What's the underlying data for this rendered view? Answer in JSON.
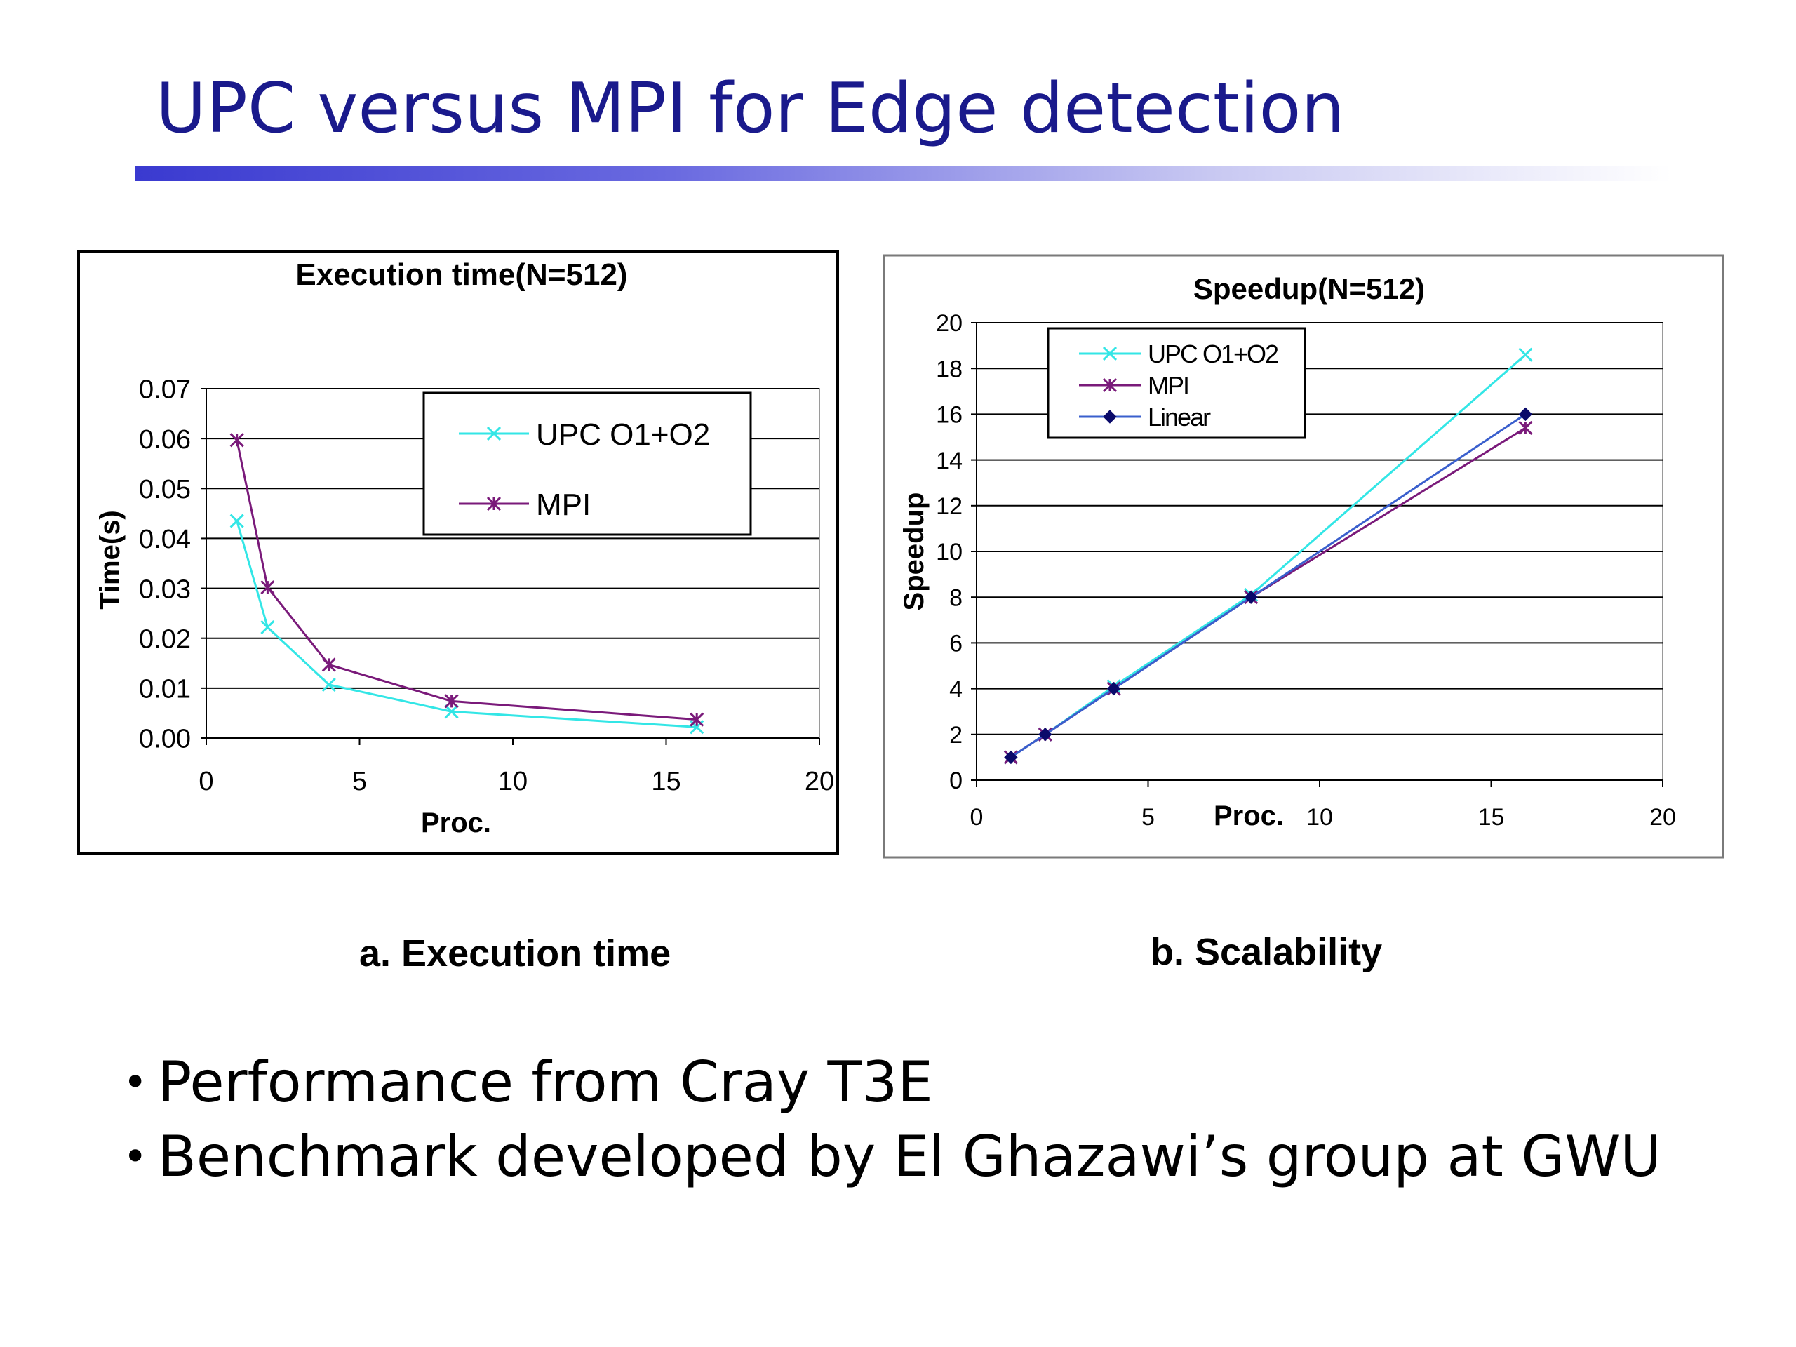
{
  "slide": {
    "title": "UPC versus MPI for Edge detection",
    "caption_a": "a. Execution time",
    "caption_b": "b. Scalability",
    "bullets": [
      "Performance from Cray T3E",
      "Benchmark developed by El Ghazawi’s group at GWU"
    ],
    "bullet_glyph": "•"
  },
  "colors": {
    "title": "#1a1a8c",
    "upc": "#33e6e6",
    "mpi": "#7a1a7a",
    "linear": "#3a5fcd",
    "linear_marker": "#0a0a6a"
  },
  "chart_data": [
    {
      "type": "line",
      "title": "Execution time(N=512)",
      "xlabel": "Proc.",
      "ylabel": "Time(s)",
      "xlim": [
        0,
        20
      ],
      "ylim": [
        0,
        0.07
      ],
      "x_ticks": [
        "0",
        "5",
        "10",
        "15",
        "20"
      ],
      "y_ticks": [
        "0.00",
        "0.01",
        "0.02",
        "0.03",
        "0.04",
        "0.05",
        "0.06",
        "0.07"
      ],
      "grid": true,
      "legend_position": "top-right",
      "series": [
        {
          "name": "UPC O1+O2",
          "marker": "x",
          "color": "#33e6e6",
          "x": [
            1,
            2,
            4,
            8,
            16
          ],
          "y": [
            0.0435,
            0.0222,
            0.0107,
            0.0053,
            0.0022
          ]
        },
        {
          "name": "MPI",
          "marker": "asterisk",
          "color": "#7a1a7a",
          "x": [
            1,
            2,
            4,
            8,
            16
          ],
          "y": [
            0.0597,
            0.0302,
            0.0147,
            0.0074,
            0.0037
          ]
        }
      ]
    },
    {
      "type": "line",
      "title": "Speedup(N=512)",
      "xlabel": "Proc.",
      "ylabel": "Speedup",
      "xlim": [
        0,
        20
      ],
      "ylim": [
        0,
        20
      ],
      "x_ticks": [
        "0",
        "5",
        "10",
        "15",
        "20"
      ],
      "y_ticks": [
        "0",
        "2",
        "4",
        "6",
        "8",
        "10",
        "12",
        "14",
        "16",
        "18",
        "20"
      ],
      "grid": true,
      "legend_position": "top-left",
      "series": [
        {
          "name": "UPC O1+O2",
          "marker": "x",
          "color": "#33e6e6",
          "x": [
            1,
            2,
            4,
            8,
            16
          ],
          "y": [
            1,
            2,
            4.1,
            8.1,
            18.6
          ]
        },
        {
          "name": "MPI",
          "marker": "asterisk",
          "color": "#7a1a7a",
          "x": [
            1,
            2,
            4,
            8,
            16
          ],
          "y": [
            1,
            2,
            4,
            8,
            15.4
          ]
        },
        {
          "name": "Linear",
          "marker": "diamond",
          "color": "#3a5fcd",
          "x": [
            1,
            2,
            4,
            8,
            16
          ],
          "y": [
            1,
            2,
            4,
            8,
            16
          ]
        }
      ]
    }
  ]
}
